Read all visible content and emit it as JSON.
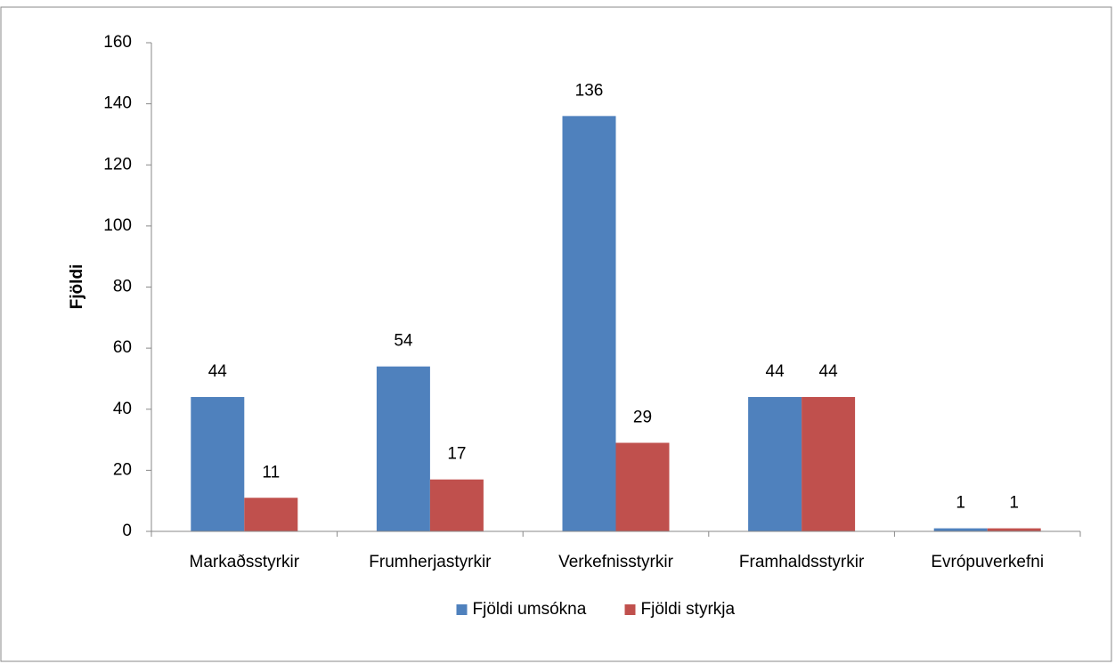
{
  "chart_data": {
    "type": "bar",
    "y_label": "Fjöldi",
    "categories": [
      "Markaðsstyrkir",
      "Frumherjastyrkir",
      "Verkefnisstyrkir",
      "Framhaldsstyrkir",
      "Evrópuverkefni"
    ],
    "series": [
      {
        "name": "Fjöldi umsókna",
        "color": "#4f81bd",
        "values": [
          44,
          54,
          136,
          44,
          1
        ]
      },
      {
        "name": "Fjöldi styrkja",
        "color": "#c0504d",
        "values": [
          11,
          17,
          29,
          44,
          1
        ]
      }
    ],
    "ylim": [
      0,
      160
    ],
    "yticks": [
      0,
      20,
      40,
      60,
      80,
      100,
      120,
      140,
      160
    ],
    "legend": "bottom"
  }
}
